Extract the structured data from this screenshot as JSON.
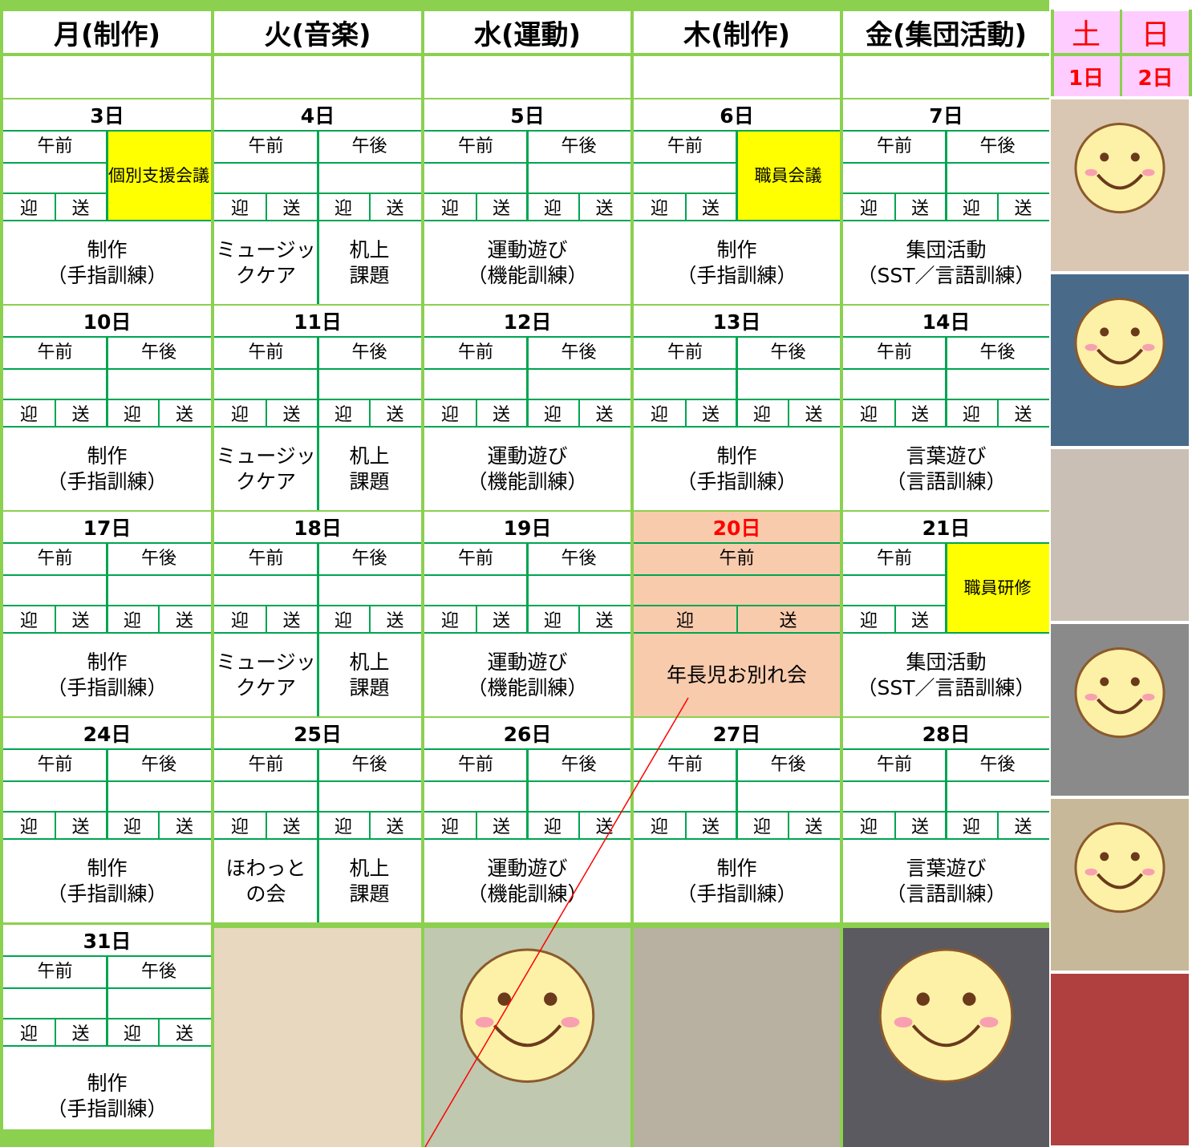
{
  "header": {
    "days": [
      "月(制作)",
      "火(音楽)",
      "水(運動)",
      "木(制作)",
      "金(集団活動)"
    ],
    "weekend": [
      "土",
      "日"
    ],
    "weekend_dates": [
      "1日",
      "2日"
    ]
  },
  "labels": {
    "am": "午前",
    "pm": "午後",
    "pickup": "迎",
    "dropoff": "送"
  },
  "weeks": [
    {
      "days": [
        {
          "date": "3日",
          "note": "個別支援会議",
          "activity": [
            [
              "制作",
              "（手指訓練）"
            ]
          ]
        },
        {
          "date": "4日",
          "activity": [
            [
              "ミュージッ",
              "クケア"
            ],
            [
              "机上",
              "課題"
            ]
          ]
        },
        {
          "date": "5日",
          "activity": [
            [
              "運動遊び",
              "（機能訓練）"
            ]
          ]
        },
        {
          "date": "6日",
          "note": "職員会議",
          "activity": [
            [
              "制作",
              "（手指訓練）"
            ]
          ]
        },
        {
          "date": "7日",
          "activity": [
            [
              "集団活動",
              "（SST／言語訓練）"
            ]
          ]
        }
      ]
    },
    {
      "days": [
        {
          "date": "10日",
          "activity": [
            [
              "制作",
              "（手指訓練）"
            ]
          ]
        },
        {
          "date": "11日",
          "activity": [
            [
              "ミュージッ",
              "クケア"
            ],
            [
              "机上",
              "課題"
            ]
          ]
        },
        {
          "date": "12日",
          "activity": [
            [
              "運動遊び",
              "（機能訓練）"
            ]
          ]
        },
        {
          "date": "13日",
          "activity": [
            [
              "制作",
              "（手指訓練）"
            ]
          ]
        },
        {
          "date": "14日",
          "activity": [
            [
              "言葉遊び",
              "（言語訓練）"
            ]
          ]
        }
      ]
    },
    {
      "days": [
        {
          "date": "17日",
          "activity": [
            [
              "制作",
              "（手指訓練）"
            ]
          ]
        },
        {
          "date": "18日",
          "activity": [
            [
              "ミュージッ",
              "クケア"
            ],
            [
              "机上",
              "課題"
            ]
          ]
        },
        {
          "date": "19日",
          "activity": [
            [
              "運動遊び",
              "（機能訓練）"
            ]
          ]
        },
        {
          "date": "20日",
          "color": "#f8cbad",
          "date_color": "#ff0000",
          "activity": [
            [
              "年長児お別れ会"
            ]
          ]
        },
        {
          "date": "21日",
          "note": "職員研修",
          "activity": [
            [
              "集団活動",
              "（SST／言語訓練）"
            ]
          ]
        }
      ]
    },
    {
      "days": [
        {
          "date": "24日",
          "activity": [
            [
              "制作",
              "（手指訓練）"
            ]
          ]
        },
        {
          "date": "25日",
          "activity": [
            [
              "ほわっと",
              "の会"
            ],
            [
              "机上",
              "課題"
            ]
          ]
        },
        {
          "date": "26日",
          "activity": [
            [
              "運動遊び",
              "（機能訓練）"
            ]
          ]
        },
        {
          "date": "27日",
          "activity": [
            [
              "制作",
              "（手指訓練）"
            ]
          ]
        },
        {
          "date": "28日",
          "activity": [
            [
              "言葉遊び",
              "（言語訓練）"
            ]
          ]
        }
      ]
    },
    {
      "days": [
        {
          "date": "31日",
          "activity": [
            [
              "制作",
              "（手指訓練）"
            ]
          ]
        }
      ]
    }
  ]
}
